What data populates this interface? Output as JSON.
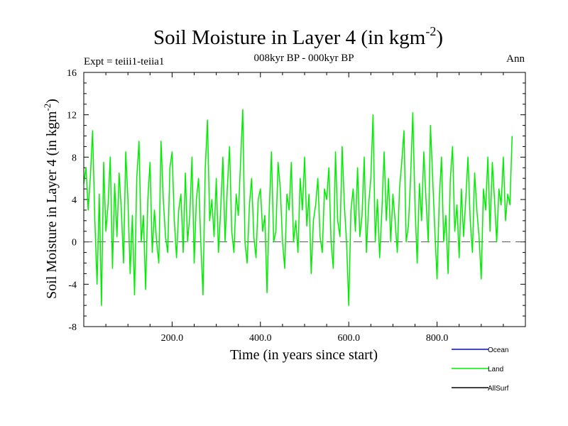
{
  "chart_data": {
    "type": "line",
    "title": "Soil Moisture in Layer 4 (in kgm",
    "title_superscript": "-2",
    "title_suffix": ")",
    "subtitle": "008kyr BP - 000kyr BP",
    "left_label": "Expt = teiii1-teiia1",
    "right_label": "Ann",
    "xlabel": "Time (in years since start)",
    "ylabel": "Soil Moisture in Layer 4 (in kgm",
    "ylabel_superscript": "-2",
    "ylabel_suffix": ")",
    "xlim": [
      0,
      1000
    ],
    "ylim": [
      -8,
      16
    ],
    "xticks": [
      200,
      400,
      600,
      800
    ],
    "xtick_labels": [
      "200.0",
      "400.0",
      "600.0",
      "800.0"
    ],
    "yticks": [
      -8,
      -4,
      0,
      4,
      8,
      12,
      16
    ],
    "ytick_labels": [
      "-8",
      "-4",
      "0",
      "4",
      "8",
      "12",
      "16"
    ],
    "reference_line": {
      "y": 0,
      "style": "dashed",
      "color": "#555555"
    },
    "grid": false,
    "legend_position": "bottom-right, outside plot",
    "legend": [
      {
        "name": "Ocean",
        "color": "#0000ff"
      },
      {
        "name": "Land",
        "color": "#00ee00"
      },
      {
        "name": "AllSurf",
        "color": "#000000"
      }
    ],
    "series": [
      {
        "name": "Land",
        "color": "#00ee00",
        "x_start": 0,
        "x_step": 5,
        "values": [
          5.5,
          7.0,
          3.0,
          6.2,
          10.5,
          2.0,
          -4.0,
          4.5,
          -6.0,
          7.5,
          1.0,
          3.5,
          8.0,
          -2.5,
          5.5,
          0.5,
          6.5,
          3.0,
          -2.0,
          8.5,
          4.0,
          -3.0,
          2.5,
          -5.0,
          6.0,
          9.5,
          0.0,
          2.5,
          -4.5,
          4.0,
          7.5,
          -1.0,
          3.0,
          0.0,
          -2.0,
          9.5,
          4.0,
          0.5,
          -1.0,
          7.0,
          8.5,
          2.0,
          -1.5,
          3.0,
          4.5,
          -1.0,
          6.5,
          0.0,
          2.5,
          8.0,
          -2.0,
          4.0,
          6.0,
          0.0,
          -5.0,
          7.0,
          11.5,
          2.0,
          4.0,
          0.5,
          6.0,
          -1.0,
          3.0,
          8.0,
          0.0,
          5.0,
          9.0,
          1.0,
          -1.0,
          4.5,
          2.5,
          7.5,
          12.5,
          0.0,
          -2.0,
          3.5,
          6.0,
          0.5,
          -1.5,
          4.0,
          5.0,
          1.0,
          2.5,
          -4.8,
          3.0,
          8.5,
          0.0,
          1.0,
          7.5,
          5.0,
          0.0,
          -2.5,
          4.5,
          3.0,
          7.5,
          0.0,
          2.0,
          -1.0,
          6.0,
          3.0,
          8.0,
          1.5,
          4.5,
          -3.0,
          2.0,
          3.5,
          6.0,
          0.5,
          -1.0,
          5.0,
          4.0,
          7.0,
          0.0,
          -2.5,
          8.5,
          2.0,
          0.5,
          9.0,
          3.5,
          0.0,
          -6.0,
          3.0,
          5.0,
          1.0,
          7.0,
          0.5,
          2.5,
          8.0,
          -1.0,
          3.5,
          6.0,
          12.0,
          0.0,
          4.0,
          -1.5,
          3.0,
          8.5,
          2.0,
          6.0,
          0.0,
          4.5,
          2.0,
          -1.0,
          5.0,
          7.5,
          10.5,
          0.0,
          1.5,
          6.0,
          12.2,
          3.5,
          -2.0,
          5.5,
          2.0,
          8.5,
          4.0,
          0.0,
          11.0,
          6.0,
          1.0,
          -3.5,
          4.0,
          8.0,
          0.0,
          2.5,
          -3.0,
          6.0,
          9.0,
          1.0,
          3.5,
          -1.5,
          5.0,
          0.5,
          4.0,
          8.0,
          2.0,
          -1.0,
          6.5,
          3.0,
          0.5,
          -3.5,
          5.0,
          3.0,
          8.0,
          1.0,
          7.5,
          4.0,
          0.0,
          5.0,
          3.5,
          8.0,
          2.0,
          4.5,
          3.5,
          10.0
        ]
      }
    ]
  }
}
